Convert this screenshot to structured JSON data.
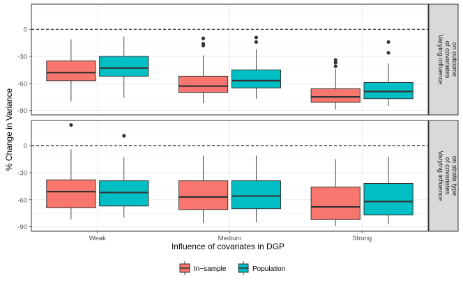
{
  "chart_data": {
    "type": "boxplot",
    "xlabel": "Influence of covariates in DGP",
    "ylabel": "% Change in Variance",
    "categories": [
      "Weak",
      "Medium",
      "Strong"
    ],
    "ylim": [
      -95,
      28
    ],
    "yticks": [
      0,
      -30,
      -60,
      -90
    ],
    "reference_line": 0,
    "legend": {
      "position": "bottom",
      "entries": [
        {
          "name": "In−sample",
          "color": "#F8766D"
        },
        {
          "name": "Population",
          "color": "#00BFC4"
        }
      ]
    },
    "facets": [
      {
        "strip": [
          "Varying influence",
          "of covariates",
          "on outcome"
        ],
        "series": [
          {
            "name": "In−sample",
            "color": "#F8766D",
            "boxes": [
              {
                "category": "Weak",
                "min": -80,
                "q1": -57,
                "median": -48,
                "q3": -35,
                "max": -11,
                "outliers": []
              },
              {
                "category": "Medium",
                "min": -82,
                "q1": -70,
                "median": -63,
                "q3": -52,
                "max": -29,
                "outliers": [
                  -10,
                  -16,
                  -18
                ]
              },
              {
                "category": "Strong",
                "min": -89,
                "q1": -81,
                "median": -75,
                "q3": -66,
                "max": -44,
                "outliers": [
                  -34,
                  -37,
                  -41
                ]
              }
            ]
          },
          {
            "name": "Population",
            "color": "#00BFC4",
            "boxes": [
              {
                "category": "Weak",
                "min": -76,
                "q1": -52,
                "median": -43,
                "q3": -30,
                "max": -8,
                "outliers": []
              },
              {
                "category": "Medium",
                "min": -77,
                "q1": -65,
                "median": -57,
                "q3": -45,
                "max": -22,
                "outliers": [
                  -9,
                  -14
                ]
              },
              {
                "category": "Strong",
                "min": -85,
                "q1": -77,
                "median": -69,
                "q3": -59,
                "max": -38,
                "outliers": [
                  -14,
                  -26
                ]
              }
            ]
          }
        ]
      },
      {
        "strip": [
          "Varying influence",
          "of covariates",
          "on strata type"
        ],
        "series": [
          {
            "name": "In−sample",
            "color": "#F8766D",
            "boxes": [
              {
                "category": "Weak",
                "min": -82,
                "q1": -69,
                "median": -51,
                "q3": -38,
                "max": -4,
                "outliers": [
                  23
                ]
              },
              {
                "category": "Medium",
                "min": -86,
                "q1": -71,
                "median": -57,
                "q3": -39,
                "max": -11,
                "outliers": []
              },
              {
                "category": "Strong",
                "min": -89,
                "q1": -82,
                "median": -68,
                "q3": -46,
                "max": -15,
                "outliers": []
              }
            ]
          },
          {
            "name": "Population",
            "color": "#00BFC4",
            "boxes": [
              {
                "category": "Weak",
                "min": -80,
                "q1": -67,
                "median": -52,
                "q3": -39,
                "max": -13,
                "outliers": [
                  11
                ]
              },
              {
                "category": "Medium",
                "min": -85,
                "q1": -70,
                "median": -56,
                "q3": -39,
                "max": -11,
                "outliers": []
              },
              {
                "category": "Strong",
                "min": -87,
                "q1": -77,
                "median": -62,
                "q3": -42,
                "max": -12,
                "outliers": []
              }
            ]
          }
        ]
      }
    ]
  }
}
